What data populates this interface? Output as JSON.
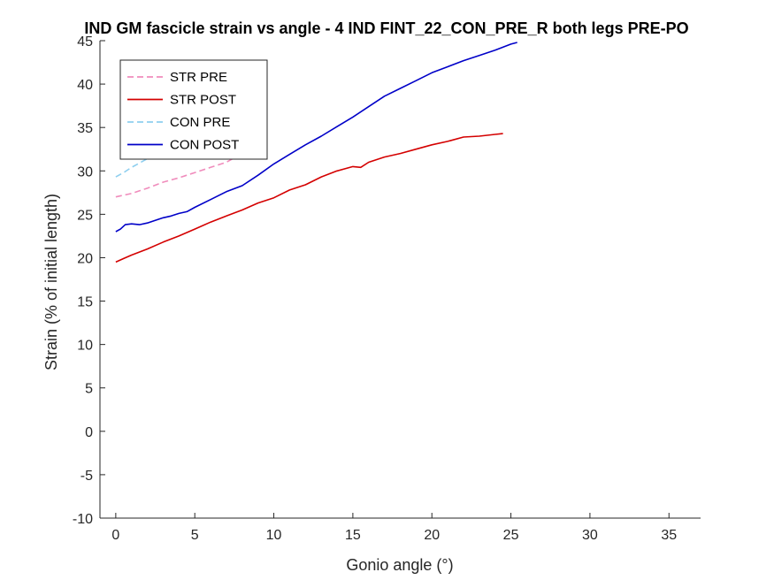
{
  "chart_data": {
    "type": "line",
    "title": "IND GM fascicle strain vs angle - 4 IND FINT_22_CON_PRE_R both legs PRE-PO",
    "xlabel": "Gonio angle (°)",
    "ylabel": "Strain (% of initial length)",
    "xlim": [
      -1,
      37
    ],
    "ylim": [
      -10,
      45
    ],
    "xticks": [
      0,
      5,
      10,
      15,
      20,
      25,
      30,
      35
    ],
    "yticks": [
      -10,
      -5,
      0,
      5,
      10,
      15,
      20,
      25,
      30,
      35,
      40,
      45
    ],
    "xtick_labels": [
      "0",
      "5",
      "10",
      "15",
      "20",
      "25",
      "30",
      "35"
    ],
    "ytick_labels": [
      "-10",
      "-5",
      "0",
      "5",
      "10",
      "15",
      "20",
      "25",
      "30",
      "35",
      "40",
      "45"
    ],
    "grid": false,
    "legend_position": "top-left",
    "series": [
      {
        "name": "STR PRE",
        "color": "#f08cbc",
        "dash": "dashed",
        "x": [
          0,
          1,
          2,
          3,
          4,
          5,
          6,
          7,
          7.5
        ],
        "y": [
          27.0,
          27.4,
          28.0,
          28.7,
          29.2,
          29.8,
          30.4,
          31.0,
          31.5
        ]
      },
      {
        "name": "STR POST",
        "color": "#d40000",
        "dash": "solid",
        "x": [
          0,
          0.5,
          1,
          2,
          3,
          4,
          5,
          6,
          7,
          8,
          9,
          10,
          11,
          12,
          13,
          14,
          15,
          15.5,
          16,
          17,
          18,
          19,
          20,
          21,
          22,
          23,
          24,
          24.5
        ],
        "y": [
          19.5,
          19.9,
          20.3,
          21.0,
          21.8,
          22.5,
          23.3,
          24.1,
          24.8,
          25.5,
          26.3,
          26.9,
          27.8,
          28.4,
          29.3,
          30.0,
          30.5,
          30.4,
          31.0,
          31.6,
          32.0,
          32.5,
          33.0,
          33.4,
          33.9,
          34.0,
          34.2,
          34.3
        ]
      },
      {
        "name": "CON PRE",
        "color": "#8ecfef",
        "dash": "dashed",
        "x": [
          0,
          0.5,
          1,
          1.5,
          2,
          2.5
        ],
        "y": [
          29.3,
          29.8,
          30.4,
          30.9,
          31.4,
          31.9
        ]
      },
      {
        "name": "CON POST",
        "color": "#0000c8",
        "dash": "solid",
        "x": [
          0,
          0.3,
          0.6,
          1,
          1.5,
          2,
          2.5,
          3,
          3.5,
          4,
          4.5,
          5,
          6,
          7,
          8,
          9,
          10,
          11,
          12,
          13,
          14,
          15,
          16,
          17,
          18,
          19,
          20,
          21,
          22,
          23,
          24,
          25,
          25.4
        ],
        "y": [
          23.0,
          23.3,
          23.8,
          23.9,
          23.8,
          24.0,
          24.3,
          24.6,
          24.8,
          25.1,
          25.3,
          25.8,
          26.7,
          27.6,
          28.3,
          29.5,
          30.8,
          31.9,
          33.0,
          34.0,
          35.1,
          36.2,
          37.4,
          38.6,
          39.5,
          40.4,
          41.3,
          42.0,
          42.7,
          43.3,
          43.9,
          44.6,
          44.8
        ]
      }
    ]
  }
}
